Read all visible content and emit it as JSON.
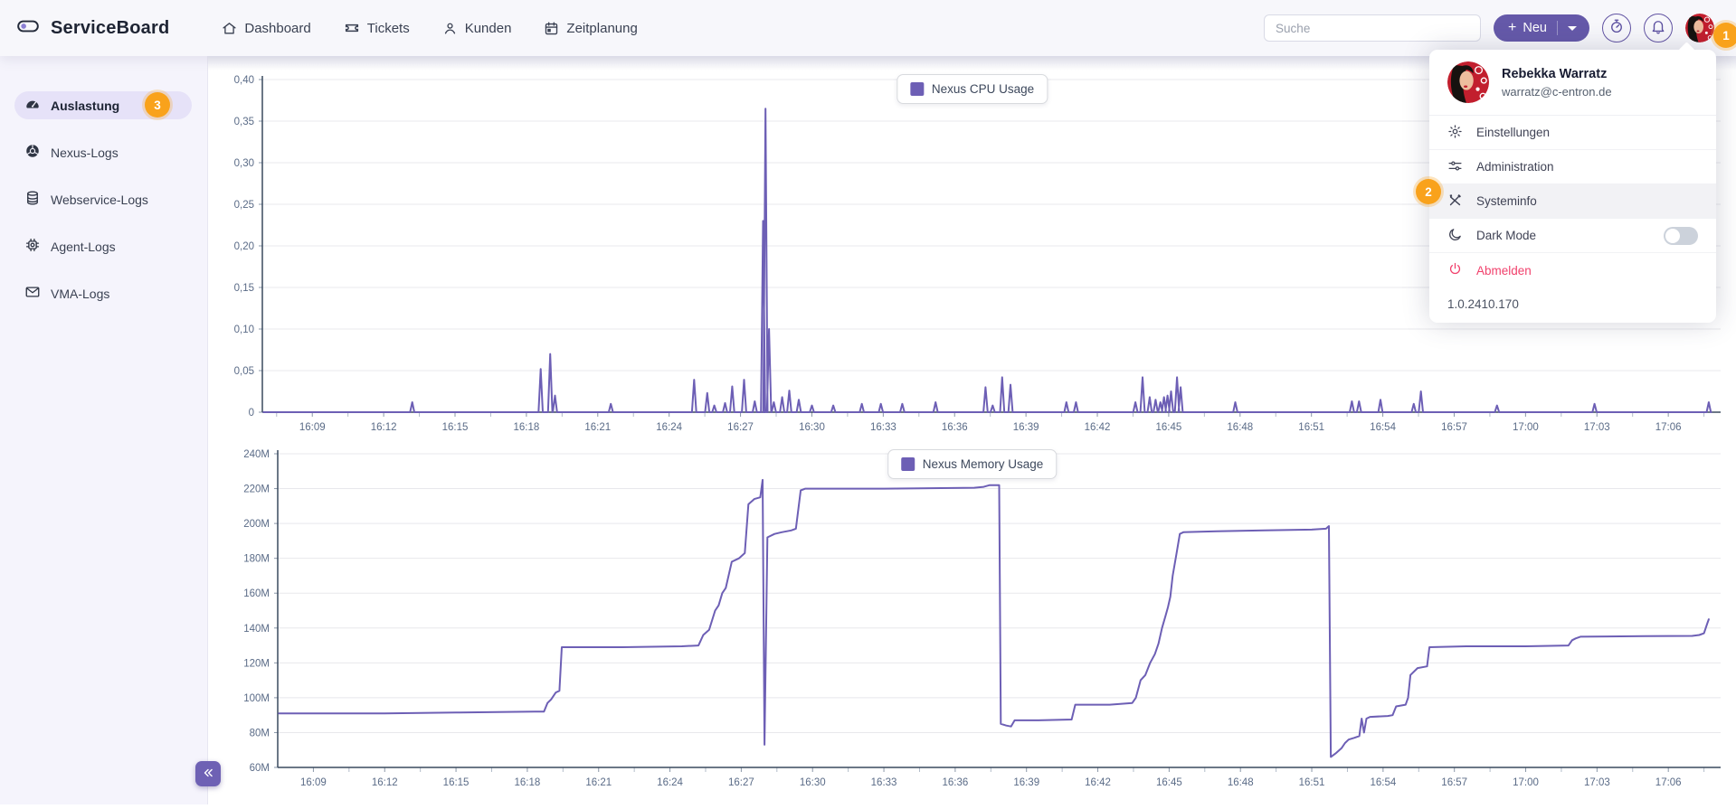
{
  "app": {
    "title": "ServiceBoard"
  },
  "header": {
    "nav": [
      {
        "label": "Dashboard",
        "icon": "home-icon"
      },
      {
        "label": "Tickets",
        "icon": "ticket-icon"
      },
      {
        "label": "Kunden",
        "icon": "person-icon"
      },
      {
        "label": "Zeitplanung",
        "icon": "calendar-icon"
      }
    ],
    "search": {
      "placeholder": "Suche"
    },
    "new_button": {
      "plus": "+",
      "label": "Neu"
    }
  },
  "sidebar": {
    "items": [
      {
        "label": "Auslastung",
        "icon": "gauge-icon",
        "active": true,
        "badge": "3"
      },
      {
        "label": "Nexus-Logs",
        "icon": "globe-icon"
      },
      {
        "label": "Webservice-Logs",
        "icon": "database-icon"
      },
      {
        "label": "Agent-Logs",
        "icon": "chip-icon"
      },
      {
        "label": "VMA-Logs",
        "icon": "envelope-icon"
      }
    ]
  },
  "user_menu": {
    "name": "Rebekka Warratz",
    "email": "warratz@c-entron.de",
    "items": [
      {
        "label": "Einstellungen",
        "icon": "gear-icon"
      },
      {
        "label": "Administration",
        "icon": "sliders-icon"
      },
      {
        "label": "Systeminfo",
        "icon": "tools-icon",
        "highlighted": true
      },
      {
        "label": "Dark Mode",
        "icon": "moon-icon",
        "toggle_state": "off"
      },
      {
        "label": "Abmelden",
        "icon": "power-icon",
        "danger": true
      }
    ],
    "version": "1.0.2410.170"
  },
  "annotations": [
    {
      "number": "1"
    },
    {
      "number": "2"
    },
    {
      "number": "3"
    }
  ],
  "colors": {
    "accent_purple": "#6559a9",
    "line_purple": "#6d5fb5",
    "badge_orange": "#f9a21b",
    "danger_red": "#f1416c",
    "sidebar_active_bg": "#e6e2f8"
  },
  "chart_data": [
    {
      "type": "line",
      "legend": "Nexus CPU Usage",
      "series_color": "#6d5fb5",
      "x_unit": "time of day, minutes after 16:00",
      "xlim": [
        6.9,
        68.2
      ],
      "x_tick_minutes": [
        9,
        12,
        15,
        18,
        21,
        24,
        27,
        30,
        33,
        36,
        39,
        42,
        45,
        48,
        51,
        54,
        57,
        60,
        63,
        66
      ],
      "x_tick_labels": [
        "16:09",
        "16:12",
        "16:15",
        "16:18",
        "16:21",
        "16:24",
        "16:27",
        "16:30",
        "16:33",
        "16:36",
        "16:39",
        "16:42",
        "16:45",
        "16:48",
        "16:51",
        "16:54",
        "16:57",
        "17:00",
        "17:03",
        "17:06"
      ],
      "ylim": [
        0,
        0.4
      ],
      "y_ticks": [
        {
          "v": 0.0,
          "label": "0"
        },
        {
          "v": 0.05,
          "label": "0,05"
        },
        {
          "v": 0.1,
          "label": "0,10"
        },
        {
          "v": 0.15,
          "label": "0,15"
        },
        {
          "v": 0.2,
          "label": "0,20"
        },
        {
          "v": 0.25,
          "label": "0,25"
        },
        {
          "v": 0.3,
          "label": "0,30"
        },
        {
          "v": 0.35,
          "label": "0,35"
        },
        {
          "v": 0.4,
          "label": "0,40"
        }
      ],
      "baseline": 0,
      "x_data_range": [
        6.95,
        67.8
      ],
      "spikes": [
        [
          13.2,
          0.012
        ],
        [
          18.6,
          0.052
        ],
        [
          19.0,
          0.07
        ],
        [
          19.2,
          0.02
        ],
        [
          21.55,
          0.01
        ],
        [
          25.05,
          0.039
        ],
        [
          25.6,
          0.023
        ],
        [
          25.9,
          0.008
        ],
        [
          26.35,
          0.011
        ],
        [
          26.65,
          0.031
        ],
        [
          27.15,
          0.039
        ],
        [
          27.6,
          0.013
        ],
        [
          27.95,
          0.23
        ],
        [
          28.05,
          0.365
        ],
        [
          28.2,
          0.1
        ],
        [
          28.4,
          0.012
        ],
        [
          28.75,
          0.018
        ],
        [
          29.05,
          0.026
        ],
        [
          29.45,
          0.015
        ],
        [
          30.0,
          0.008
        ],
        [
          30.9,
          0.008
        ],
        [
          32.1,
          0.01
        ],
        [
          32.9,
          0.01
        ],
        [
          33.8,
          0.01
        ],
        [
          35.2,
          0.012
        ],
        [
          37.3,
          0.03
        ],
        [
          37.6,
          0.008
        ],
        [
          38.0,
          0.042
        ],
        [
          38.35,
          0.033
        ],
        [
          40.7,
          0.012
        ],
        [
          41.1,
          0.012
        ],
        [
          43.6,
          0.012
        ],
        [
          43.9,
          0.042
        ],
        [
          44.2,
          0.018
        ],
        [
          44.45,
          0.015
        ],
        [
          44.65,
          0.012
        ],
        [
          44.8,
          0.018
        ],
        [
          44.95,
          0.02
        ],
        [
          45.1,
          0.025
        ],
        [
          45.35,
          0.042
        ],
        [
          45.5,
          0.03
        ],
        [
          47.8,
          0.012
        ],
        [
          52.7,
          0.013
        ],
        [
          53.0,
          0.013
        ],
        [
          53.9,
          0.015
        ],
        [
          55.3,
          0.01
        ],
        [
          55.6,
          0.025
        ],
        [
          58.8,
          0.008
        ],
        [
          62.9,
          0.01
        ],
        [
          67.7,
          0.012
        ]
      ]
    },
    {
      "type": "line",
      "legend": "Nexus Memory Usage",
      "series_color": "#6d5fb5",
      "x_unit": "time of day, minutes after 16:00",
      "xlim": [
        7.5,
        68.2
      ],
      "x_tick_minutes": [
        9,
        12,
        15,
        18,
        21,
        24,
        27,
        30,
        33,
        36,
        39,
        42,
        45,
        48,
        51,
        54,
        57,
        60,
        63,
        66
      ],
      "x_tick_labels": [
        "16:09",
        "16:12",
        "16:15",
        "16:18",
        "16:21",
        "16:24",
        "16:27",
        "16:30",
        "16:33",
        "16:36",
        "16:39",
        "16:42",
        "16:45",
        "16:48",
        "16:51",
        "16:54",
        "16:57",
        "17:00",
        "17:03",
        "17:06"
      ],
      "ylim": [
        60,
        240
      ],
      "y_unit": "MB",
      "y_ticks": [
        {
          "v": 60,
          "label": "60M"
        },
        {
          "v": 80,
          "label": "80M"
        },
        {
          "v": 100,
          "label": "100M"
        },
        {
          "v": 120,
          "label": "120M"
        },
        {
          "v": 140,
          "label": "140M"
        },
        {
          "v": 160,
          "label": "160M"
        },
        {
          "v": 180,
          "label": "180M"
        },
        {
          "v": 200,
          "label": "200M"
        },
        {
          "v": 220,
          "label": "220M"
        },
        {
          "v": 240,
          "label": "240M"
        }
      ],
      "points": [
        [
          7.55,
          91
        ],
        [
          12,
          91
        ],
        [
          15,
          91.5
        ],
        [
          18.3,
          92
        ],
        [
          18.7,
          92
        ],
        [
          18.85,
          97
        ],
        [
          19.0,
          99
        ],
        [
          19.2,
          103
        ],
        [
          19.35,
          104
        ],
        [
          19.45,
          129
        ],
        [
          22,
          129
        ],
        [
          24.5,
          129.5
        ],
        [
          25.2,
          130
        ],
        [
          25.4,
          136
        ],
        [
          25.65,
          139
        ],
        [
          25.9,
          150
        ],
        [
          26.05,
          153
        ],
        [
          26.2,
          160
        ],
        [
          26.35,
          163
        ],
        [
          26.6,
          178
        ],
        [
          26.9,
          180
        ],
        [
          27.15,
          183
        ],
        [
          27.3,
          211
        ],
        [
          27.55,
          214
        ],
        [
          27.8,
          215
        ],
        [
          27.9,
          225
        ],
        [
          27.98,
          73
        ],
        [
          28.1,
          192
        ],
        [
          28.4,
          194
        ],
        [
          28.7,
          195
        ],
        [
          29.1,
          196
        ],
        [
          29.3,
          197
        ],
        [
          29.5,
          219
        ],
        [
          29.7,
          220
        ],
        [
          33,
          220
        ],
        [
          36.8,
          220.5
        ],
        [
          37.2,
          221
        ],
        [
          37.45,
          222
        ],
        [
          37.85,
          222
        ],
        [
          37.92,
          85
        ],
        [
          38.15,
          84
        ],
        [
          38.35,
          83.5
        ],
        [
          38.5,
          87
        ],
        [
          39.5,
          87
        ],
        [
          40.9,
          87.5
        ],
        [
          41.05,
          96
        ],
        [
          42.5,
          96
        ],
        [
          43.45,
          97
        ],
        [
          43.6,
          100
        ],
        [
          43.8,
          110
        ],
        [
          44.0,
          113
        ],
        [
          44.2,
          120
        ],
        [
          44.4,
          125
        ],
        [
          44.55,
          131
        ],
        [
          44.7,
          140
        ],
        [
          44.85,
          147
        ],
        [
          44.95,
          152
        ],
        [
          45.05,
          158
        ],
        [
          45.15,
          170
        ],
        [
          45.3,
          182
        ],
        [
          45.45,
          194
        ],
        [
          45.6,
          195
        ],
        [
          47,
          195.5
        ],
        [
          49,
          196
        ],
        [
          51,
          196.5
        ],
        [
          51.6,
          197
        ],
        [
          51.72,
          198.5
        ],
        [
          51.8,
          66
        ],
        [
          52.0,
          68
        ],
        [
          52.25,
          71
        ],
        [
          52.4,
          74
        ],
        [
          52.55,
          76
        ],
        [
          52.8,
          77
        ],
        [
          53.0,
          78
        ],
        [
          53.1,
          88
        ],
        [
          53.2,
          80
        ],
        [
          53.3,
          88
        ],
        [
          53.45,
          89
        ],
        [
          54.2,
          89.5
        ],
        [
          54.4,
          90
        ],
        [
          54.55,
          95
        ],
        [
          54.95,
          96
        ],
        [
          55.05,
          100
        ],
        [
          55.15,
          113
        ],
        [
          55.45,
          117
        ],
        [
          55.85,
          118
        ],
        [
          55.95,
          129
        ],
        [
          57.5,
          129.5
        ],
        [
          60,
          129.5
        ],
        [
          61.8,
          130
        ],
        [
          61.95,
          133
        ],
        [
          62.1,
          134
        ],
        [
          62.3,
          135
        ],
        [
          65,
          135.3
        ],
        [
          67.0,
          135.5
        ],
        [
          67.3,
          136
        ],
        [
          67.5,
          137
        ],
        [
          67.65,
          143
        ],
        [
          67.7,
          145
        ]
      ]
    }
  ]
}
